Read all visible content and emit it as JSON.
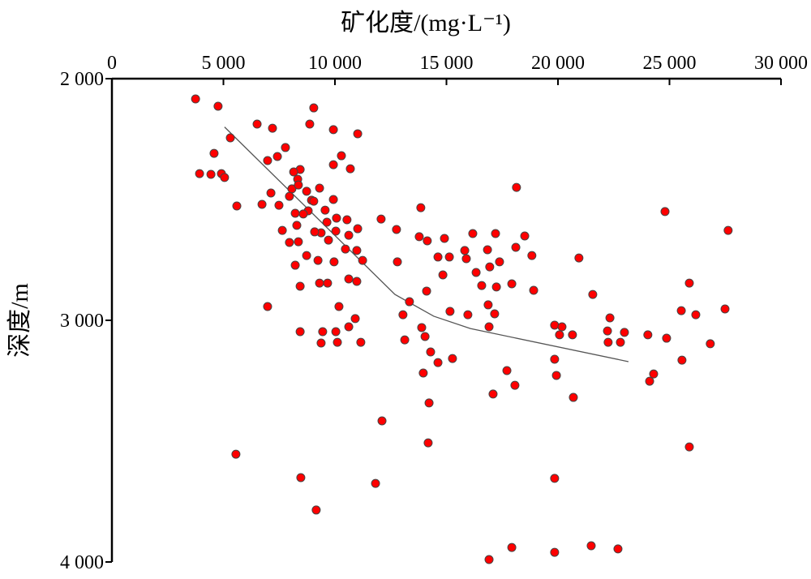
{
  "chart_data": {
    "type": "scatter",
    "title": "",
    "xlabel": "矿化度/(mg·L⁻¹)",
    "ylabel": "深度/m",
    "xlim": [
      0,
      30000
    ],
    "ylim": [
      2000,
      4000
    ],
    "y_inverted": true,
    "x_axis_position": "top",
    "grid": false,
    "xticks": [
      0,
      5000,
      10000,
      15000,
      20000,
      25000,
      30000
    ],
    "xtick_labels": [
      "0",
      "5 000",
      "10 000",
      "15 000",
      "20 000",
      "25 000",
      "30 000"
    ],
    "yticks": [
      2000,
      3000,
      4000
    ],
    "ytick_labels": [
      "2 000",
      "3 000",
      "4 000"
    ],
    "point_color": "#ff0000",
    "line_color": "#555555",
    "points": [
      [
        3750,
        2084
      ],
      [
        4760,
        2114
      ],
      [
        9050,
        2121
      ],
      [
        6510,
        2188
      ],
      [
        8870,
        2188
      ],
      [
        7200,
        2205
      ],
      [
        9930,
        2211
      ],
      [
        11020,
        2228
      ],
      [
        5310,
        2245
      ],
      [
        4580,
        2309
      ],
      [
        7780,
        2285
      ],
      [
        10290,
        2319
      ],
      [
        7420,
        2322
      ],
      [
        6980,
        2339
      ],
      [
        9930,
        2356
      ],
      [
        10690,
        2373
      ],
      [
        3930,
        2393
      ],
      [
        4440,
        2396
      ],
      [
        4910,
        2393
      ],
      [
        5050,
        2409
      ],
      [
        8440,
        2376
      ],
      [
        8150,
        2386
      ],
      [
        8330,
        2416
      ],
      [
        8730,
        2466
      ],
      [
        8950,
        2503
      ],
      [
        8070,
        2456
      ],
      [
        8360,
        2440
      ],
      [
        7960,
        2487
      ],
      [
        7130,
        2473
      ],
      [
        9310,
        2453
      ],
      [
        9050,
        2507
      ],
      [
        9930,
        2500
      ],
      [
        8800,
        2547
      ],
      [
        5600,
        2527
      ],
      [
        6730,
        2520
      ],
      [
        7490,
        2524
      ],
      [
        8220,
        2557
      ],
      [
        8580,
        2560
      ],
      [
        9560,
        2544
      ],
      [
        10070,
        2577
      ],
      [
        10540,
        2584
      ],
      [
        9640,
        2594
      ],
      [
        9380,
        2638
      ],
      [
        9710,
        2668
      ],
      [
        11020,
        2621
      ],
      [
        8290,
        2607
      ],
      [
        7640,
        2628
      ],
      [
        9090,
        2634
      ],
      [
        10040,
        2631
      ],
      [
        10620,
        2648
      ],
      [
        7960,
        2678
      ],
      [
        8360,
        2675
      ],
      [
        8730,
        2732
      ],
      [
        10470,
        2705
      ],
      [
        10980,
        2711
      ],
      [
        9240,
        2752
      ],
      [
        8220,
        2772
      ],
      [
        9960,
        2758
      ],
      [
        11240,
        2752
      ],
      [
        10620,
        2829
      ],
      [
        10980,
        2839
      ],
      [
        9670,
        2846
      ],
      [
        8440,
        2859
      ],
      [
        9310,
        2846
      ],
      [
        10180,
        2943
      ],
      [
        6980,
        2943
      ],
      [
        8440,
        3047
      ],
      [
        9450,
        3047
      ],
      [
        10040,
        3047
      ],
      [
        10620,
        3027
      ],
      [
        10910,
        2993
      ],
      [
        9380,
        3094
      ],
      [
        10110,
        3091
      ],
      [
        11160,
        3091
      ],
      [
        5560,
        3554
      ],
      [
        8470,
        3651
      ],
      [
        9160,
        3785
      ],
      [
        12070,
        2581
      ],
      [
        12760,
        2624
      ],
      [
        13850,
        2534
      ],
      [
        13780,
        2654
      ],
      [
        14140,
        2671
      ],
      [
        14910,
        2661
      ],
      [
        14620,
        2738
      ],
      [
        15130,
        2738
      ],
      [
        14840,
        2812
      ],
      [
        15890,
        2745
      ],
      [
        16180,
        2641
      ],
      [
        15820,
        2711
      ],
      [
        16330,
        2802
      ],
      [
        17200,
        2641
      ],
      [
        16840,
        2708
      ],
      [
        17380,
        2758
      ],
      [
        16940,
        2779
      ],
      [
        16580,
        2856
      ],
      [
        17240,
        2862
      ],
      [
        17930,
        2849
      ],
      [
        18110,
        2698
      ],
      [
        18510,
        2651
      ],
      [
        18830,
        2732
      ],
      [
        18910,
        2876
      ],
      [
        18140,
        2450
      ],
      [
        12800,
        2758
      ],
      [
        13340,
        2923
      ],
      [
        13050,
        2977
      ],
      [
        15160,
        2963
      ],
      [
        15960,
        2977
      ],
      [
        14110,
        2879
      ],
      [
        13130,
        3081
      ],
      [
        13890,
        3030
      ],
      [
        14040,
        3067
      ],
      [
        14290,
        3131
      ],
      [
        14620,
        3175
      ],
      [
        15270,
        3158
      ],
      [
        13960,
        3218
      ],
      [
        14220,
        3342
      ],
      [
        16870,
        2936
      ],
      [
        16910,
        3027
      ],
      [
        17160,
        2973
      ],
      [
        17710,
        3208
      ],
      [
        18070,
        3269
      ],
      [
        17090,
        3305
      ],
      [
        19850,
        3020
      ],
      [
        20070,
        3060
      ],
      [
        20180,
        3027
      ],
      [
        20650,
        3060
      ],
      [
        20940,
        2742
      ],
      [
        21560,
        2893
      ],
      [
        20690,
        3319
      ],
      [
        19850,
        3161
      ],
      [
        19930,
        3228
      ],
      [
        22330,
        2990
      ],
      [
        22220,
        3044
      ],
      [
        22250,
        3091
      ],
      [
        22800,
        3091
      ],
      [
        22980,
        3050
      ],
      [
        24030,
        3060
      ],
      [
        24800,
        2550
      ],
      [
        24870,
        3074
      ],
      [
        24110,
        3252
      ],
      [
        24290,
        3222
      ],
      [
        25560,
        3165
      ],
      [
        25530,
        2960
      ],
      [
        26180,
        2977
      ],
      [
        25890,
        2846
      ],
      [
        25890,
        3524
      ],
      [
        26830,
        3097
      ],
      [
        27490,
        2953
      ],
      [
        27630,
        2628
      ],
      [
        14180,
        3507
      ],
      [
        12110,
        3416
      ],
      [
        11820,
        3675
      ],
      [
        19850,
        3654
      ],
      [
        16910,
        3990
      ],
      [
        17930,
        3940
      ],
      [
        19850,
        3960
      ],
      [
        21490,
        3933
      ],
      [
        22690,
        3946
      ]
    ],
    "trend_line": [
      [
        5050,
        2200
      ],
      [
        12690,
        2893
      ],
      [
        14430,
        2983
      ],
      [
        16070,
        3034
      ],
      [
        23160,
        3171
      ]
    ]
  }
}
